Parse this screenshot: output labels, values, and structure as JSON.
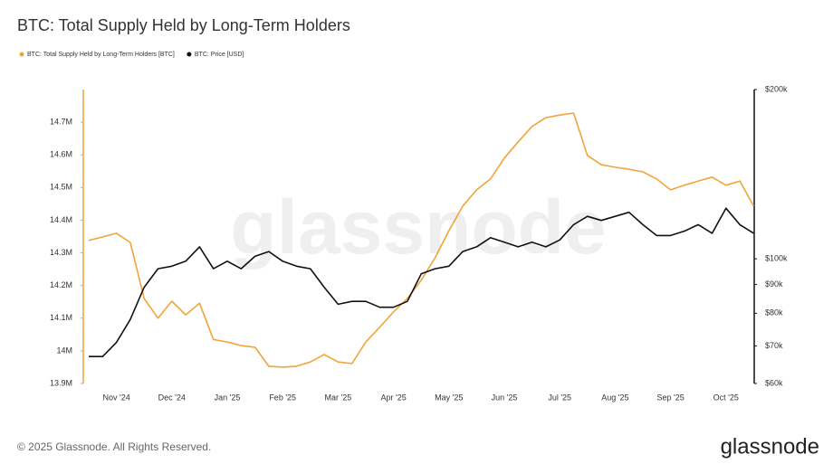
{
  "chart_data": {
    "type": "line",
    "title": "BTC: Total Supply Held by Long-Term Holders",
    "watermark": "glassnode",
    "categories": [
      null,
      null,
      "Nov '24",
      null,
      null,
      null,
      "Dec '24",
      null,
      null,
      null,
      "Jan '25",
      null,
      null,
      null,
      "Feb '25",
      null,
      null,
      null,
      "Mar '25",
      null,
      null,
      null,
      "Apr '25",
      null,
      null,
      null,
      "May '25",
      null,
      null,
      null,
      "Jun '25",
      null,
      null,
      null,
      "Jul '25",
      null,
      null,
      null,
      "Aug '25",
      null,
      null,
      null,
      "Sep '25",
      null,
      null,
      null,
      "Oct '25",
      null,
      null
    ],
    "series": [
      {
        "name": "BTC: Total Supply Held by Long-Term Holders [BTC]",
        "color": "#f2a33a",
        "values": [
          14338000,
          14349000,
          14360000,
          14332000,
          14160000,
          14100000,
          14152000,
          14110000,
          14146000,
          14035000,
          14027000,
          14016000,
          14011000,
          13953000,
          13950000,
          13953000,
          13966000,
          13989000,
          13966000,
          13961000,
          14027000,
          14072000,
          14119000,
          14160000,
          14216000,
          14285000,
          14368000,
          14443000,
          14493000,
          14526000,
          14590000,
          14640000,
          14687000,
          14714000,
          14722000,
          14728000,
          14598000,
          14570000,
          14562000,
          14556000,
          14548000,
          14526000,
          14493000,
          14507000,
          14520000,
          14532000,
          14507000,
          14520000,
          14443000
        ]
      },
      {
        "name": "BTC: Price [USD]",
        "color": "#111111",
        "axis": "y2",
        "values": [
          67000,
          67000,
          71000,
          78000,
          89000,
          96000,
          97000,
          99000,
          105000,
          96000,
          99000,
          96000,
          101000,
          103000,
          99000,
          97000,
          96000,
          89000,
          83000,
          84000,
          84000,
          82000,
          82000,
          84000,
          94000,
          96000,
          97000,
          103000,
          105000,
          109000,
          107000,
          105000,
          107000,
          105000,
          108000,
          115000,
          119000,
          117000,
          119000,
          121000,
          115000,
          110000,
          110000,
          112000,
          115000,
          111000,
          123000,
          115000,
          111000
        ]
      }
    ],
    "ylim": [
      13900000,
      14800000
    ],
    "yticks": [
      {
        "value": 13900000,
        "label": "13.9M"
      },
      {
        "value": 14000000,
        "label": "14M"
      },
      {
        "value": 14100000,
        "label": "14.1M"
      },
      {
        "value": 14200000,
        "label": "14.2M"
      },
      {
        "value": 14300000,
        "label": "14.3M"
      },
      {
        "value": 14400000,
        "label": "14.4M"
      },
      {
        "value": 14500000,
        "label": "14.5M"
      },
      {
        "value": 14600000,
        "label": "14.6M"
      },
      {
        "value": 14700000,
        "label": "14.7M"
      }
    ],
    "y2lim": [
      60000,
      200000
    ],
    "y2log": true,
    "y2ticks": [
      {
        "value": 60000,
        "label": "$60k"
      },
      {
        "value": 70000,
        "label": "$70k"
      },
      {
        "value": 80000,
        "label": "$80k"
      },
      {
        "value": 90000,
        "label": "$90k"
      },
      {
        "value": 100000,
        "label": "$100k"
      },
      {
        "value": 200000,
        "label": "$200k"
      }
    ],
    "legend": "top-left",
    "grid": false
  },
  "footer": {
    "copyright": "© 2025 Glassnode. All Rights Reserved.",
    "logo": "glassnode"
  }
}
